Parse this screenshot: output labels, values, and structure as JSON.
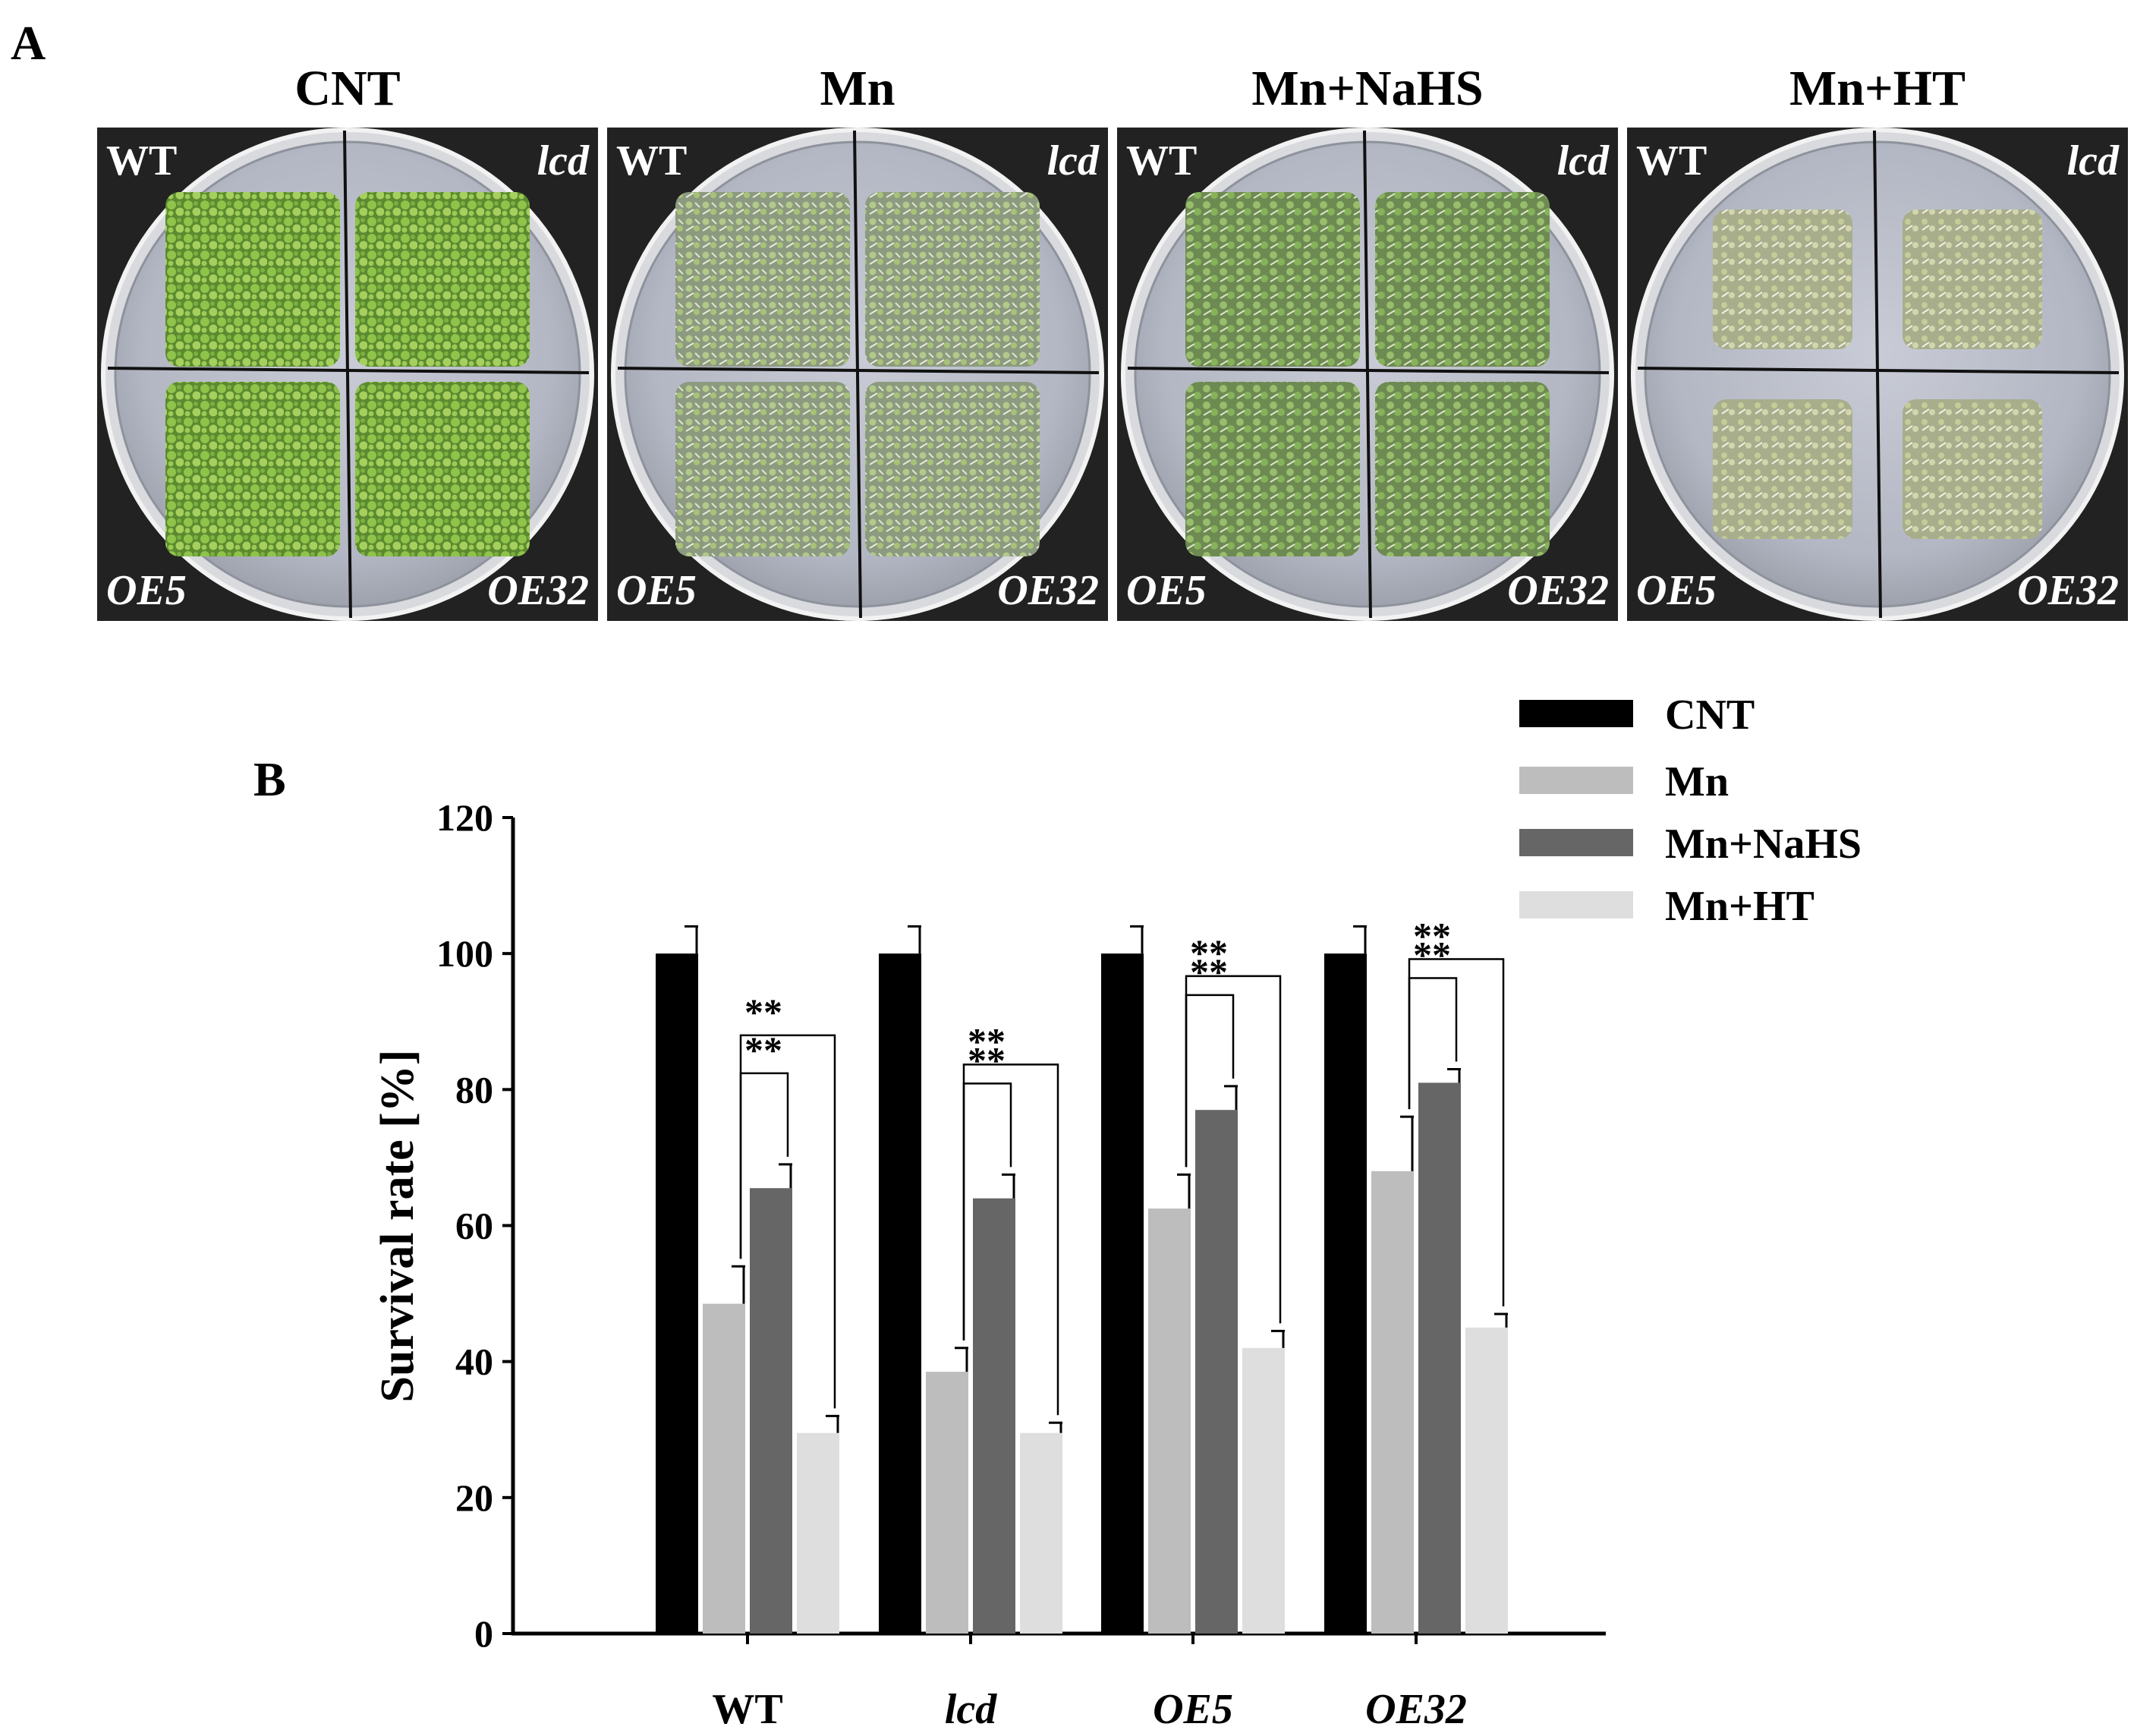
{
  "panel_a": {
    "label": "A",
    "plates": [
      {
        "title": "CNT",
        "quadrants": [
          "WT",
          "lcd",
          "OE5",
          "OE32"
        ]
      },
      {
        "title": "Mn",
        "quadrants": [
          "WT",
          "lcd",
          "OE5",
          "OE32"
        ]
      },
      {
        "title": "Mn+NaHS",
        "quadrants": [
          "WT",
          "lcd",
          "OE5",
          "OE32"
        ]
      },
      {
        "title": "Mn+HT",
        "quadrants": [
          "WT",
          "lcd",
          "OE5",
          "OE32"
        ]
      }
    ],
    "seedling_colors": [
      "#8fc34a",
      "#b2c98a",
      "#98bd6c",
      "#c4cc98"
    ]
  },
  "panel_b": {
    "label": "B"
  },
  "chart_data": {
    "type": "bar",
    "title": "",
    "xlabel": "",
    "ylabel": "Survival rate [%]",
    "ylim": [
      0,
      120
    ],
    "yticks": [
      "0",
      "20",
      "40",
      "60",
      "80",
      "100",
      "120"
    ],
    "categories": [
      "WT",
      "lcd",
      "OE5",
      "OE32"
    ],
    "italic_categories": [
      "lcd",
      "OE5",
      "OE32"
    ],
    "series": [
      {
        "name": "CNT",
        "color": "#000000",
        "values": [
          100,
          100,
          100,
          100
        ],
        "errors": [
          4,
          4,
          4,
          4
        ]
      },
      {
        "name": "Mn",
        "color": "#bdbdbd",
        "values": [
          48.5,
          38.5,
          62.5,
          68
        ],
        "errors": [
          5.5,
          3.5,
          5,
          8
        ]
      },
      {
        "name": "Mn+NaHS",
        "color": "#666666",
        "values": [
          65.5,
          64,
          77,
          81
        ],
        "errors": [
          3.5,
          3.5,
          3.5,
          2
        ]
      },
      {
        "name": "Mn+HT",
        "color": "#dedede",
        "values": [
          29.5,
          29.5,
          42,
          45
        ],
        "errors": [
          2.5,
          1.5,
          2.5,
          2
        ]
      }
    ],
    "significance": [
      {
        "category": "WT",
        "from": "Mn",
        "to": "Mn+NaHS",
        "label": "**"
      },
      {
        "category": "WT",
        "from": "Mn",
        "to": "Mn+HT",
        "label": "**"
      },
      {
        "category": "lcd",
        "from": "Mn",
        "to": "Mn+NaHS",
        "label": "**"
      },
      {
        "category": "lcd",
        "from": "Mn",
        "to": "Mn+HT",
        "label": "**"
      },
      {
        "category": "OE5",
        "from": "Mn",
        "to": "Mn+NaHS",
        "label": "**"
      },
      {
        "category": "OE5",
        "from": "Mn",
        "to": "Mn+HT",
        "label": "**"
      },
      {
        "category": "OE32",
        "from": "Mn",
        "to": "Mn+NaHS",
        "label": "**"
      },
      {
        "category": "OE32",
        "from": "Mn",
        "to": "Mn+HT",
        "label": "**"
      }
    ],
    "legend": [
      "CNT",
      "Mn",
      "Mn+NaHS",
      "Mn+HT"
    ],
    "legend_position": "top-right",
    "grid": false
  }
}
